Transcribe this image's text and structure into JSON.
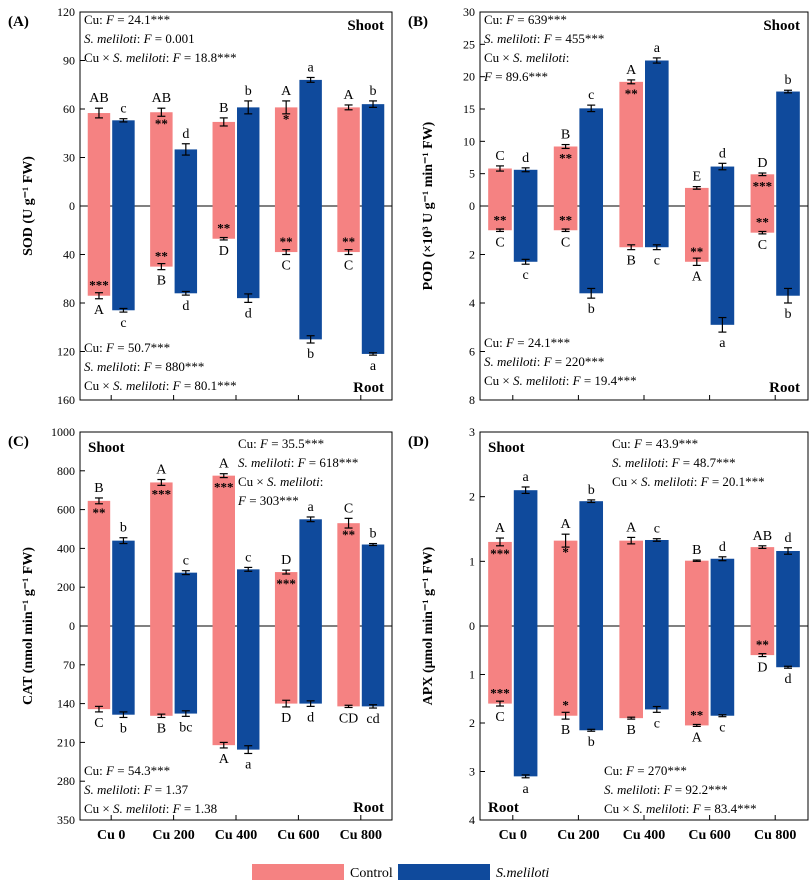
{
  "colors": {
    "control": "#f58282",
    "smeliloti": "#0f4a9c"
  },
  "legend": {
    "control": "Control",
    "smeliloti": "S.meliloti"
  },
  "categories": [
    "Cu 0",
    "Cu 200",
    "Cu 400",
    "Cu 600",
    "Cu 800"
  ],
  "chart_data": [
    {
      "panel": "(A)",
      "type": "bar",
      "ylabel": "SOD (U g⁻¹ FW)",
      "shoot_ticks": [
        "0",
        "30",
        "60",
        "90",
        "120"
      ],
      "root_ticks": [
        "40",
        "80",
        "120",
        "160"
      ],
      "shoot_max": 120,
      "root_max": 160,
      "shoot_label": "Shoot",
      "root_label": "Root",
      "shoot": {
        "control": [
          57.5,
          58,
          52,
          61,
          61
        ],
        "control_err": [
          3,
          2.5,
          2.5,
          4,
          1.5
        ],
        "smeliloti": [
          53,
          35,
          61,
          78,
          63
        ],
        "smeliloti_err": [
          1,
          3.5,
          4,
          1.5,
          2
        ],
        "control_letters": [
          "AB",
          "AB",
          "B",
          "A",
          "A"
        ],
        "smeliloti_letters": [
          "c",
          "d",
          "b",
          "a",
          "b"
        ],
        "control_stars": [
          "",
          "**",
          "",
          "*",
          ""
        ]
      },
      "root": {
        "control": [
          74,
          50,
          27,
          38,
          38
        ],
        "control_err": [
          2.5,
          2.5,
          1,
          2,
          2
        ],
        "smeliloti": [
          86,
          72,
          76,
          110,
          122
        ],
        "smeliloti_err": [
          1.5,
          1.5,
          3.5,
          3,
          1
        ],
        "control_letters": [
          "A",
          "B",
          "D",
          "C",
          "C"
        ],
        "smeliloti_letters": [
          "c",
          "d",
          "d",
          "b",
          "a"
        ],
        "control_stars": [
          "***",
          "**",
          "**",
          "**",
          "**"
        ]
      },
      "shoot_stats": [
        "Cu: F = 24.1***",
        "S. meliloti: F = 0.001",
        "Cu × S. meliloti: F = 18.8***"
      ],
      "root_stats": [
        "Cu: F = 50.7***",
        "S. meliloti: F = 880***",
        "Cu × S. meliloti: F = 80.1***"
      ]
    },
    {
      "panel": "(B)",
      "type": "bar",
      "ylabel": "POD (×10³ U g⁻¹ min⁻¹ FW)",
      "shoot_ticks": [
        "0",
        "5",
        "10",
        "15",
        "20",
        "25",
        "30"
      ],
      "root_ticks": [
        "2",
        "4",
        "6",
        "8"
      ],
      "shoot_max": 30,
      "root_max": 8,
      "shoot_label": "Shoot",
      "root_label": "Root",
      "shoot": {
        "control": [
          5.8,
          9.2,
          19.2,
          2.8,
          4.9
        ],
        "control_err": [
          0.4,
          0.3,
          0.3,
          0.2,
          0.2
        ],
        "smeliloti": [
          5.6,
          15.1,
          22.5,
          6.1,
          17.7
        ],
        "smeliloti_err": [
          0.3,
          0.5,
          0.4,
          0.5,
          0.2
        ],
        "control_letters": [
          "C",
          "B",
          "A",
          "E",
          "D"
        ],
        "smeliloti_letters": [
          "d",
          "c",
          "a",
          "d",
          "b"
        ],
        "control_stars": [
          "",
          "**",
          "**",
          "",
          "***"
        ]
      },
      "root": {
        "control": [
          1.0,
          1.0,
          1.7,
          2.3,
          1.1
        ],
        "control_err": [
          0.05,
          0.05,
          0.1,
          0.15,
          0.05
        ],
        "smeliloti": [
          2.3,
          3.6,
          1.7,
          4.9,
          3.7
        ],
        "smeliloti_err": [
          0.1,
          0.2,
          0.1,
          0.3,
          0.3
        ],
        "control_letters": [
          "C",
          "C",
          "B",
          "A",
          "C"
        ],
        "smeliloti_letters": [
          "c",
          "b",
          "c",
          "a",
          "b"
        ],
        "control_stars": [
          "**",
          "**",
          "",
          "**",
          "**"
        ]
      },
      "shoot_stats": [
        "Cu: F = 639***",
        "S. meliloti: F = 455***",
        "Cu × S. meliloti:",
        "F = 89.6***"
      ],
      "root_stats": [
        "Cu: F = 24.1***",
        "S. meliloti: F = 220***",
        "Cu × S. meliloti: F = 19.4***"
      ]
    },
    {
      "panel": "(C)",
      "type": "bar",
      "ylabel": "CAT (nmol min⁻¹ g⁻¹ FW)",
      "shoot_ticks": [
        "0",
        "200",
        "400",
        "600",
        "800",
        "1000"
      ],
      "root_ticks": [
        "70",
        "140",
        "210",
        "280",
        "350"
      ],
      "shoot_max": 1000,
      "root_max": 350,
      "shoot_label": "Shoot",
      "root_label": "Root",
      "shoot": {
        "control": [
          645,
          740,
          775,
          278,
          530
        ],
        "control_err": [
          15,
          15,
          10,
          10,
          25
        ],
        "smeliloti": [
          440,
          275,
          292,
          550,
          420
        ],
        "smeliloti_err": [
          15,
          10,
          10,
          12,
          5
        ],
        "control_letters": [
          "B",
          "A",
          "A",
          "D",
          "C"
        ],
        "smeliloti_letters": [
          "b",
          "c",
          "c",
          "a",
          "b"
        ],
        "control_stars": [
          "**",
          "***",
          "***",
          "***",
          "**"
        ]
      },
      "root": {
        "control": [
          150,
          162,
          215,
          140,
          145
        ],
        "control_err": [
          5,
          3,
          5,
          6,
          2
        ],
        "smeliloti": [
          160,
          158,
          223,
          140,
          145
        ],
        "smeliloti_err": [
          5,
          5,
          7,
          5,
          3
        ],
        "control_letters": [
          "C",
          "B",
          "A",
          "D",
          "CD"
        ],
        "smeliloti_letters": [
          "b",
          "bc",
          "a",
          "d",
          "cd"
        ],
        "control_stars": [
          "",
          "",
          "",
          "",
          ""
        ]
      },
      "shoot_stats": [
        "Cu: F = 35.5***",
        "S. meliloti: F = 618***",
        "Cu × S. meliloti:",
        "F = 303***"
      ],
      "root_stats": [
        "Cu: F = 54.3***",
        "S. meliloti: F = 1.37",
        "Cu × S. meliloti: F = 1.38"
      ]
    },
    {
      "panel": "(D)",
      "type": "bar",
      "ylabel": "APX (μmol min⁻¹ g⁻¹ FW)",
      "shoot_ticks": [
        "0",
        "1",
        "2",
        "3"
      ],
      "root_ticks": [
        "1",
        "2",
        "3",
        "4"
      ],
      "shoot_max": 3,
      "root_max": 4,
      "shoot_label": "Shoot",
      "root_label": "Root",
      "shoot": {
        "control": [
          1.3,
          1.32,
          1.32,
          1.01,
          1.22
        ],
        "control_err": [
          0.06,
          0.1,
          0.05,
          0.01,
          0.02
        ],
        "smeliloti": [
          2.1,
          1.93,
          1.33,
          1.04,
          1.16
        ],
        "smeliloti_err": [
          0.05,
          0.02,
          0.02,
          0.03,
          0.05
        ],
        "control_letters": [
          "A",
          "A",
          "A",
          "B",
          "AB"
        ],
        "smeliloti_letters": [
          "a",
          "b",
          "c",
          "d",
          "d"
        ],
        "control_stars": [
          "***",
          "*",
          "",
          "",
          ""
        ]
      },
      "root": {
        "control": [
          1.6,
          1.85,
          1.9,
          2.05,
          0.6
        ],
        "control_err": [
          0.05,
          0.07,
          0.02,
          0.02,
          0.03
        ],
        "smeliloti": [
          3.1,
          2.15,
          1.72,
          1.85,
          0.85
        ],
        "smeliloti_err": [
          0.03,
          0.02,
          0.06,
          0.02,
          0.02
        ],
        "control_letters": [
          "C",
          "B",
          "B",
          "A",
          "D"
        ],
        "smeliloti_letters": [
          "a",
          "b",
          "c",
          "c",
          "d"
        ],
        "control_stars": [
          "***",
          "*",
          "",
          "**",
          "**"
        ]
      },
      "shoot_stats": [
        "Cu: F = 43.9***",
        "S. meliloti: F = 48.7***",
        "Cu × S. meliloti: F = 20.1***"
      ],
      "root_stats": [
        "Cu: F = 270***",
        "S. meliloti: F = 92.2***",
        "Cu × S. meliloti: F = 83.4***"
      ]
    }
  ]
}
